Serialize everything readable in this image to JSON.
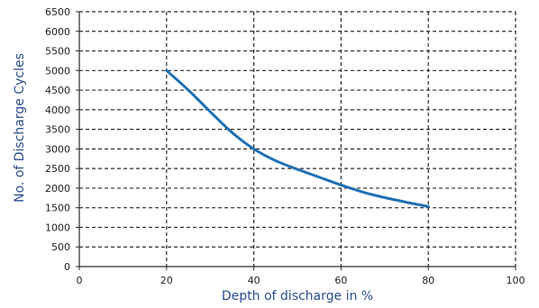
{
  "chart_data": {
    "type": "line",
    "title": "",
    "xlabel": "Depth of discharge in %",
    "ylabel": "No. of Discharge Cycles",
    "xlim": [
      0,
      100
    ],
    "ylim": [
      0,
      6500
    ],
    "x_ticks": [
      0,
      20,
      40,
      60,
      80,
      100
    ],
    "y_ticks": [
      0,
      500,
      1000,
      1500,
      2000,
      2500,
      3000,
      3500,
      4000,
      4500,
      5000,
      5500,
      6000,
      6500
    ],
    "grid": true,
    "grid_style": "dashed",
    "legend": "none",
    "series": [
      {
        "color": "#1f6fb4",
        "x": [
          20,
          25,
          30,
          35,
          40,
          45,
          50,
          55,
          60,
          65,
          70,
          75,
          80
        ],
        "y": [
          5000,
          4500,
          3950,
          3420,
          3000,
          2700,
          2480,
          2280,
          2080,
          1900,
          1760,
          1640,
          1530
        ]
      }
    ]
  }
}
